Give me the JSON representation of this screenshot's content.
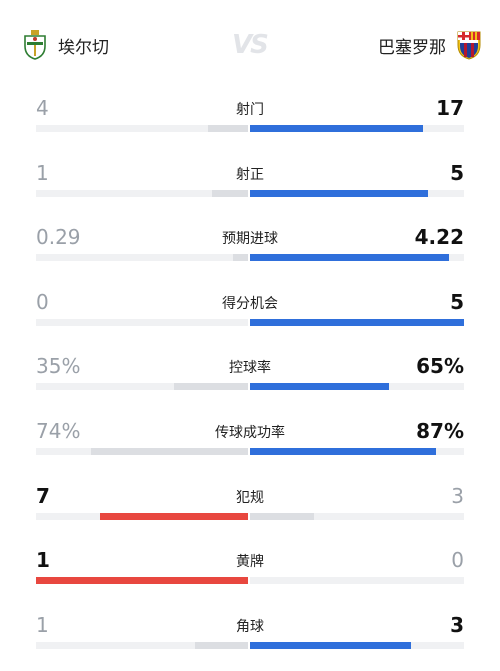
{
  "header": {
    "home_team": "埃尔切",
    "away_team": "巴塞罗那",
    "vs_label": "VS"
  },
  "colors": {
    "blue": "#2f6fdb",
    "red": "#e8473f",
    "gray": "#dcdee2",
    "track": "#f0f1f3"
  },
  "stats": [
    {
      "label": "射门",
      "home": "4",
      "away": "17",
      "home_frac": 0.19,
      "away_frac": 0.81,
      "lead": "away"
    },
    {
      "label": "射正",
      "home": "1",
      "away": "5",
      "home_frac": 0.17,
      "away_frac": 0.83,
      "lead": "away"
    },
    {
      "label": "预期进球",
      "home": "0.29",
      "away": "4.22",
      "home_frac": 0.07,
      "away_frac": 0.93,
      "lead": "away"
    },
    {
      "label": "得分机会",
      "home": "0",
      "away": "5",
      "home_frac": 0.0,
      "away_frac": 1.0,
      "lead": "away"
    },
    {
      "label": "控球率",
      "home": "35%",
      "away": "65%",
      "home_frac": 0.35,
      "away_frac": 0.65,
      "lead": "away"
    },
    {
      "label": "传球成功率",
      "home": "74%",
      "away": "87%",
      "home_frac": 0.74,
      "away_frac": 0.87,
      "lead": "away"
    },
    {
      "label": "犯规",
      "home": "7",
      "away": "3",
      "home_frac": 0.7,
      "away_frac": 0.3,
      "lead": "home"
    },
    {
      "label": "黄牌",
      "home": "1",
      "away": "0",
      "home_frac": 1.0,
      "away_frac": 0.0,
      "lead": "home"
    },
    {
      "label": "角球",
      "home": "1",
      "away": "3",
      "home_frac": 0.25,
      "away_frac": 0.75,
      "lead": "away"
    }
  ]
}
